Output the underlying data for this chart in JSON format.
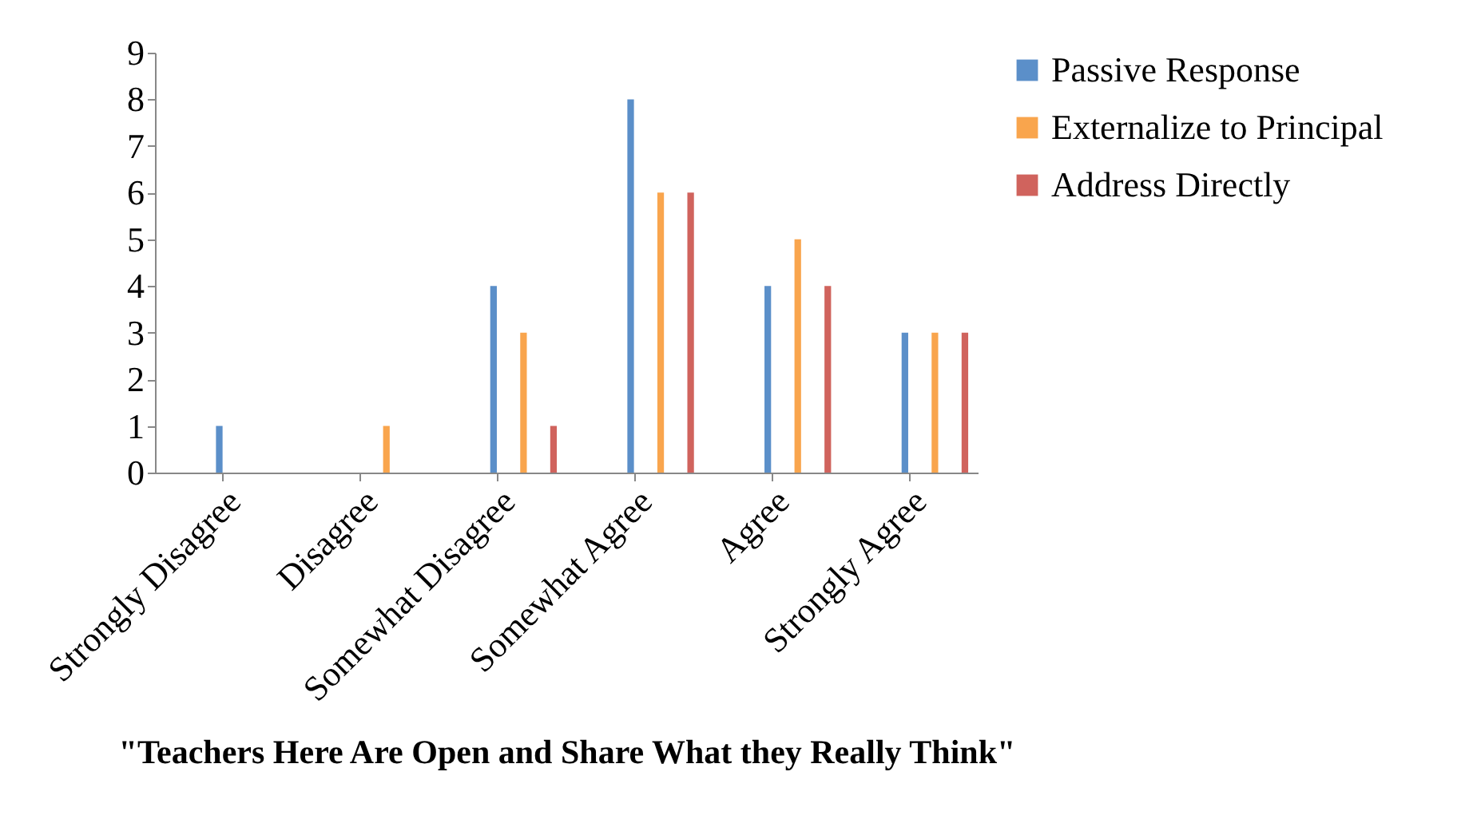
{
  "chart_data": {
    "type": "bar",
    "xlabel": "\"Teachers Here Are Open and Share What they Really Think\"",
    "categories": [
      "Strongly Disagree",
      "Disagree",
      "Somewhat Disagree",
      "Somewhat Agree",
      "Agree",
      "Strongly Agree"
    ],
    "series": [
      {
        "name": "Passive Response",
        "color": "#5b8fc9",
        "values": [
          1,
          0,
          4,
          8,
          4,
          3
        ]
      },
      {
        "name": "Externalize to Principal",
        "color": "#f9a54d",
        "values": [
          0,
          1,
          3,
          6,
          5,
          3
        ]
      },
      {
        "name": "Address Directly",
        "color": "#d0635d",
        "values": [
          0,
          0,
          1,
          6,
          4,
          3
        ]
      }
    ],
    "ylim": [
      0,
      9
    ],
    "yticks": [
      0,
      1,
      2,
      3,
      4,
      5,
      6,
      7,
      8,
      9
    ],
    "grid": false,
    "legend": "right"
  }
}
